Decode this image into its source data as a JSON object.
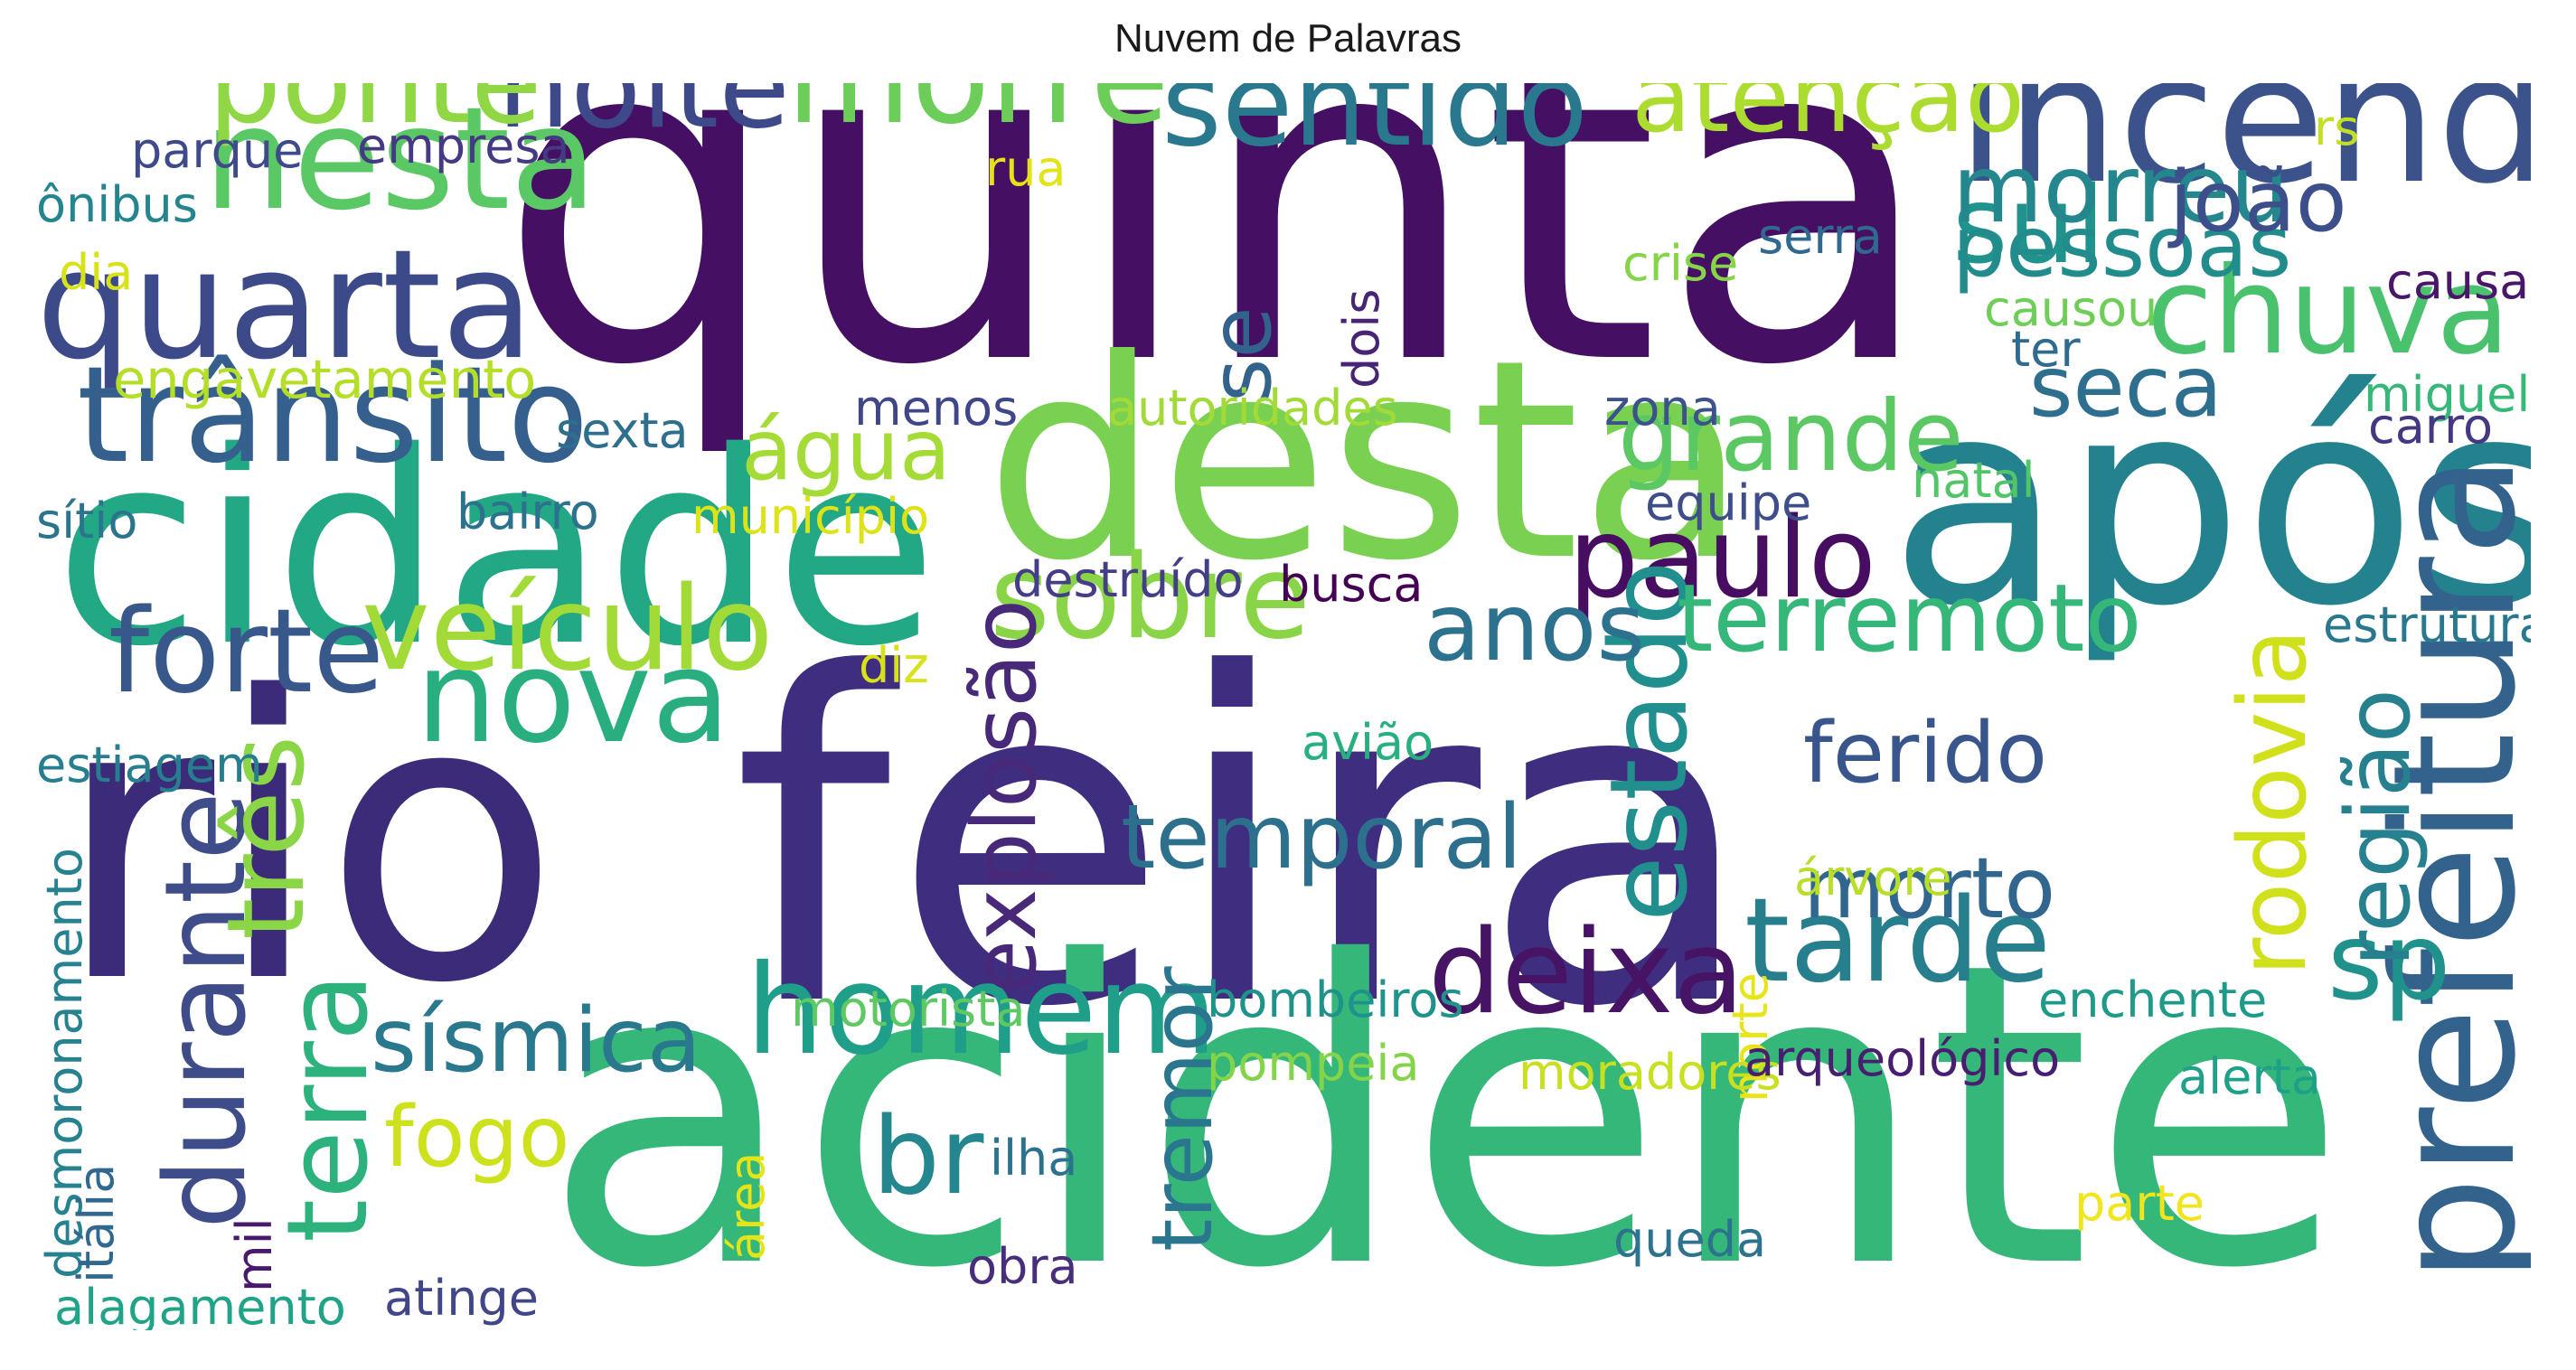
{
  "chart_data": {
    "type": "wordcloud",
    "title": "Nuvem de Palavras",
    "words": [
      {
        "text": "quinta",
        "weight": 100,
        "color": "#450f64",
        "orient": "h"
      },
      {
        "text": "feira",
        "weight": 100,
        "color": "#3f2d7f",
        "orient": "h"
      },
      {
        "text": "acidente",
        "weight": 92,
        "color": "#35b779",
        "orient": "h"
      },
      {
        "text": "rio",
        "weight": 86,
        "color": "#3b2b78",
        "orient": "h"
      },
      {
        "text": "após",
        "weight": 62,
        "color": "#23828e",
        "orient": "h"
      },
      {
        "text": "desta",
        "weight": 60,
        "color": "#7ad151",
        "orient": "h"
      },
      {
        "text": "cidade",
        "weight": 58,
        "color": "#22a884",
        "orient": "h"
      },
      {
        "text": "incêndio",
        "weight": 38,
        "color": "#3b528b",
        "orient": "h"
      },
      {
        "text": "prefeitura",
        "weight": 36,
        "color": "#33638d",
        "orient": "v"
      },
      {
        "text": "quarta",
        "weight": 32,
        "color": "#3d4a8a",
        "orient": "h"
      },
      {
        "text": "nesta",
        "weight": 30,
        "color": "#5ac864",
        "orient": "h"
      },
      {
        "text": "trânsito",
        "weight": 28,
        "color": "#355f8d",
        "orient": "h"
      },
      {
        "text": "morre",
        "weight": 27,
        "color": "#6cce59",
        "orient": "h"
      },
      {
        "text": "nova",
        "weight": 27,
        "color": "#29af7f",
        "orient": "h"
      },
      {
        "text": "homem",
        "weight": 26,
        "color": "#1f9e89",
        "orient": "h"
      },
      {
        "text": "chuva",
        "weight": 25,
        "color": "#4ac16d",
        "orient": "h"
      },
      {
        "text": "sentido",
        "weight": 24,
        "color": "#2a788e",
        "orient": "h"
      },
      {
        "text": "noite",
        "weight": 24,
        "color": "#3e4989",
        "orient": "h"
      },
      {
        "text": "ponte",
        "weight": 24,
        "color": "#8fd744",
        "orient": "h"
      },
      {
        "text": "tarde",
        "weight": 24,
        "color": "#277f8e",
        "orient": "h"
      },
      {
        "text": "deixa",
        "weight": 24,
        "color": "#471365",
        "orient": "h"
      },
      {
        "text": "sobre",
        "weight": 24,
        "color": "#8ad547",
        "orient": "h"
      },
      {
        "text": "veículo",
        "weight": 24,
        "color": "#a2da37",
        "orient": "h"
      },
      {
        "text": "forte",
        "weight": 24,
        "color": "#38588c",
        "orient": "h"
      },
      {
        "text": "paulo",
        "weight": 23,
        "color": "#470d60",
        "orient": "h"
      },
      {
        "text": "durante",
        "weight": 23,
        "color": "#3e4c8a",
        "orient": "v"
      },
      {
        "text": "terra",
        "weight": 23,
        "color": "#2db27d",
        "orient": "v"
      },
      {
        "text": "três",
        "weight": 22,
        "color": "#8bd646",
        "orient": "v"
      },
      {
        "text": "estado",
        "weight": 22,
        "color": "#218f8d",
        "orient": "v"
      },
      {
        "text": "sp",
        "weight": 22,
        "color": "#21918c",
        "orient": "h"
      },
      {
        "text": "br",
        "weight": 22,
        "color": "#24868e",
        "orient": "h"
      },
      {
        "text": "sul",
        "weight": 22,
        "color": "#20938c",
        "orient": "h"
      },
      {
        "text": "atenção",
        "weight": 20,
        "color": "#addc30",
        "orient": "h"
      },
      {
        "text": "grande",
        "weight": 20,
        "color": "#5cc863",
        "orient": "h"
      },
      {
        "text": "morreu",
        "weight": 19,
        "color": "#24878e",
        "orient": "h"
      },
      {
        "text": "anos",
        "weight": 19,
        "color": "#2c718e",
        "orient": "h"
      },
      {
        "text": "terremoto",
        "weight": 19,
        "color": "#35b779",
        "orient": "h"
      },
      {
        "text": "rodovia",
        "weight": 19,
        "color": "#d0e11c",
        "orient": "v"
      },
      {
        "text": "sísmica",
        "weight": 18,
        "color": "#2a788e",
        "orient": "h"
      },
      {
        "text": "explosão",
        "weight": 18,
        "color": "#482878",
        "orient": "v"
      },
      {
        "text": "região",
        "weight": 18,
        "color": "#27808e",
        "orient": "v"
      },
      {
        "text": "temporal",
        "weight": 18,
        "color": "#2d708e",
        "orient": "h"
      },
      {
        "text": "fogo",
        "weight": 17,
        "color": "#cde11d",
        "orient": "h"
      },
      {
        "text": "água",
        "weight": 17,
        "color": "#a5db36",
        "orient": "h"
      },
      {
        "text": "seca",
        "weight": 17,
        "color": "#2e6e8e",
        "orient": "h"
      },
      {
        "text": "pessoas",
        "weight": 17,
        "color": "#228c8d",
        "orient": "h"
      },
      {
        "text": "joão",
        "weight": 17,
        "color": "#3c4f8a",
        "orient": "h"
      },
      {
        "text": "ferido",
        "weight": 17,
        "color": "#39568c",
        "orient": "h"
      },
      {
        "text": "morto",
        "weight": 17,
        "color": "#31668e",
        "orient": "h"
      },
      {
        "text": "tremor",
        "weight": 17,
        "color": "#2a768e",
        "orient": "v"
      },
      {
        "text": "se",
        "weight": 17,
        "color": "#33638d",
        "orient": "v"
      },
      {
        "text": "engavetamento",
        "weight": 10,
        "color": "#b5de2b",
        "orient": "h"
      },
      {
        "text": "parque",
        "weight": 9,
        "color": "#3e4a89",
        "orient": "h"
      },
      {
        "text": "empresa",
        "weight": 9,
        "color": "#443983",
        "orient": "h"
      },
      {
        "text": "ônibus",
        "weight": 9,
        "color": "#25858e",
        "orient": "h"
      },
      {
        "text": "dia",
        "weight": 9,
        "color": "#d8e219",
        "orient": "h"
      },
      {
        "text": "rua",
        "weight": 9,
        "color": "#e2e418",
        "orient": "h"
      },
      {
        "text": "rs",
        "weight": 9,
        "color": "#c2df23",
        "orient": "h"
      },
      {
        "text": "serra",
        "weight": 9,
        "color": "#31688e",
        "orient": "h"
      },
      {
        "text": "crise",
        "weight": 9,
        "color": "#86d549",
        "orient": "h"
      },
      {
        "text": "causou",
        "weight": 9,
        "color": "#6ece58",
        "orient": "h"
      },
      {
        "text": "causa",
        "weight": 9,
        "color": "#481769",
        "orient": "h"
      },
      {
        "text": "ter",
        "weight": 9,
        "color": "#2f6b8e",
        "orient": "h"
      },
      {
        "text": "dois",
        "weight": 9,
        "color": "#482475",
        "orient": "v"
      },
      {
        "text": "autoridades",
        "weight": 9,
        "color": "#a2da37",
        "orient": "h"
      },
      {
        "text": "menos",
        "weight": 9,
        "color": "#3f4788",
        "orient": "h"
      },
      {
        "text": "sexta",
        "weight": 9,
        "color": "#2e6f8e",
        "orient": "h"
      },
      {
        "text": "zona",
        "weight": 9,
        "color": "#3b528b",
        "orient": "h"
      },
      {
        "text": "natal",
        "weight": 9,
        "color": "#52c569",
        "orient": "h"
      },
      {
        "text": "miguel",
        "weight": 9,
        "color": "#37b878",
        "orient": "h"
      },
      {
        "text": "carro",
        "weight": 9,
        "color": "#453882",
        "orient": "h"
      },
      {
        "text": "sítio",
        "weight": 9,
        "color": "#2b748e",
        "orient": "h"
      },
      {
        "text": "bairro",
        "weight": 9,
        "color": "#2c728e",
        "orient": "h"
      },
      {
        "text": "município",
        "weight": 9,
        "color": "#dde318",
        "orient": "h"
      },
      {
        "text": "equipe",
        "weight": 9,
        "color": "#3d4e8a",
        "orient": "h"
      },
      {
        "text": "destruído",
        "weight": 9,
        "color": "#433e85",
        "orient": "h"
      },
      {
        "text": "busca",
        "weight": 9,
        "color": "#440154",
        "orient": "h"
      },
      {
        "text": "estrutura",
        "weight": 9,
        "color": "#2a788e",
        "orient": "h"
      },
      {
        "text": "diz",
        "weight": 9,
        "color": "#d8e219",
        "orient": "h"
      },
      {
        "text": "estiagem",
        "weight": 9,
        "color": "#277e8e",
        "orient": "h"
      },
      {
        "text": "avião",
        "weight": 9,
        "color": "#29af7f",
        "orient": "h"
      },
      {
        "text": "árvore",
        "weight": 9,
        "color": "#b8de29",
        "orient": "h"
      },
      {
        "text": "desmoronamento",
        "weight": 9,
        "color": "#26828e",
        "orient": "v"
      },
      {
        "text": "motorista",
        "weight": 9,
        "color": "#5ec962",
        "orient": "h"
      },
      {
        "text": "bombeiros",
        "weight": 9,
        "color": "#20928c",
        "orient": "h"
      },
      {
        "text": "norte",
        "weight": 9,
        "color": "#e7e419",
        "orient": "v"
      },
      {
        "text": "enchente",
        "weight": 9,
        "color": "#1f9a8a",
        "orient": "h"
      },
      {
        "text": "pompeia",
        "weight": 9,
        "color": "#84d44b",
        "orient": "h"
      },
      {
        "text": "moradores",
        "weight": 9,
        "color": "#c8e020",
        "orient": "h"
      },
      {
        "text": "arqueológico",
        "weight": 9,
        "color": "#481f70",
        "orient": "h"
      },
      {
        "text": "alerta",
        "weight": 9,
        "color": "#1fa088",
        "orient": "h"
      },
      {
        "text": "itália",
        "weight": 9,
        "color": "#31688e",
        "orient": "v"
      },
      {
        "text": "área",
        "weight": 9,
        "color": "#e5e419",
        "orient": "v"
      },
      {
        "text": "ilha",
        "weight": 9,
        "color": "#2c728e",
        "orient": "h"
      },
      {
        "text": "mil",
        "weight": 9,
        "color": "#481a6c",
        "orient": "v"
      },
      {
        "text": "obra",
        "weight": 9,
        "color": "#472d7b",
        "orient": "h"
      },
      {
        "text": "parte",
        "weight": 9,
        "color": "#f1e51d",
        "orient": "h"
      },
      {
        "text": "queda",
        "weight": 9,
        "color": "#2c738e",
        "orient": "h"
      },
      {
        "text": "alagamento",
        "weight": 9,
        "color": "#20a386",
        "orient": "h"
      },
      {
        "text": "atinge",
        "weight": 9,
        "color": "#404688",
        "orient": "h"
      }
    ]
  }
}
